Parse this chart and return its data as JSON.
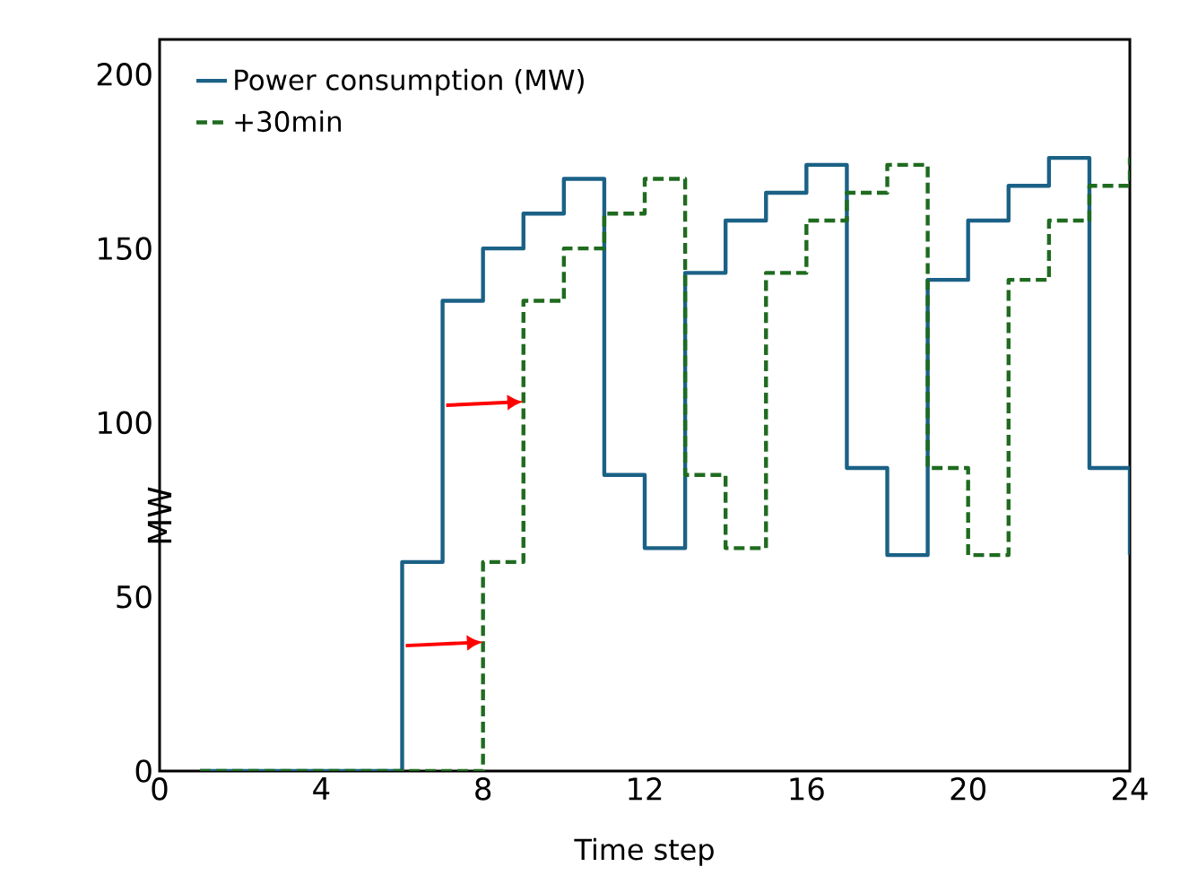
{
  "chart_data": {
    "type": "step",
    "xlabel": "Time step",
    "ylabel": "MW",
    "x": [
      1,
      2,
      3,
      4,
      5,
      6,
      7,
      8,
      9,
      10,
      11,
      12,
      13,
      14,
      15,
      16,
      17,
      18,
      19,
      20,
      21,
      22,
      23,
      24
    ],
    "series": [
      {
        "name": "Power consumption (MW)",
        "color": "#1b6186",
        "line_style": "solid",
        "values": [
          0,
          0,
          0,
          0,
          0,
          60,
          135,
          150,
          160,
          170,
          85,
          64,
          143,
          158,
          166,
          174,
          87,
          62,
          141,
          158,
          168,
          176,
          87,
          62
        ]
      },
      {
        "name": "+30min",
        "color": "#1f6b1f",
        "line_style": "dashed",
        "values": [
          0,
          0,
          0,
          0,
          0,
          0,
          0,
          60,
          135,
          150,
          160,
          170,
          85,
          64,
          143,
          158,
          166,
          174,
          87,
          62,
          141,
          158,
          168,
          176
        ]
      }
    ],
    "xlim": [
      0,
      24
    ],
    "xticks": [
      0,
      4,
      8,
      12,
      16,
      20,
      24
    ],
    "ylim": [
      0,
      210
    ],
    "yticks": [
      0,
      50,
      100,
      150,
      200
    ],
    "legend": "top left",
    "grid": false,
    "marker": "none"
  }
}
